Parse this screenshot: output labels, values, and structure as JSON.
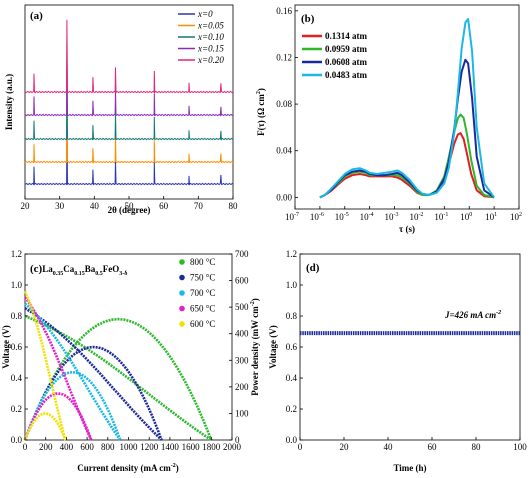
{
  "panels": {
    "a": {
      "label": "(a)"
    },
    "b": {
      "label": "(b)"
    },
    "c": {
      "label": "(c)",
      "compound": "La",
      "compound_parts": [
        "0.35",
        "Ca",
        "0.15",
        "Ba",
        "0.5",
        "FeO",
        "3-δ"
      ]
    },
    "d": {
      "label": "(d)"
    }
  },
  "chart_data": [
    {
      "panel": "a",
      "type": "line",
      "xlabel": "2θ (degree)",
      "ylabel": "Intensity (a.u.)",
      "xlim": [
        20,
        80
      ],
      "xticks": [
        "20",
        "30",
        "40",
        "50",
        "60",
        "70",
        "80"
      ],
      "legend_position": "top-right",
      "series": [
        {
          "name": "x=0",
          "color": "#2a35b8",
          "peaks": [
            [
              22.6,
              0.25
            ],
            [
              32.1,
              1.0
            ],
            [
              39.6,
              0.2
            ],
            [
              46.1,
              0.35
            ],
            [
              57.3,
              0.3
            ],
            [
              67.3,
              0.12
            ],
            [
              76.5,
              0.12
            ]
          ]
        },
        {
          "name": "x=0.05",
          "color": "#ff8c00",
          "peaks": [
            [
              22.6,
              0.25
            ],
            [
              32.1,
              1.0
            ],
            [
              39.6,
              0.2
            ],
            [
              46.1,
              0.35
            ],
            [
              57.3,
              0.3
            ],
            [
              67.3,
              0.12
            ],
            [
              76.5,
              0.12
            ]
          ]
        },
        {
          "name": "x=0.10",
          "color": "#0f7a70",
          "peaks": [
            [
              22.6,
              0.25
            ],
            [
              32.1,
              1.0
            ],
            [
              39.6,
              0.2
            ],
            [
              46.1,
              0.35
            ],
            [
              57.3,
              0.3
            ],
            [
              67.3,
              0.12
            ],
            [
              76.5,
              0.12
            ]
          ]
        },
        {
          "name": "x=0.15",
          "color": "#8b2ab8",
          "peaks": [
            [
              22.6,
              0.25
            ],
            [
              32.1,
              1.0
            ],
            [
              39.6,
              0.2
            ],
            [
              46.1,
              0.35
            ],
            [
              57.3,
              0.3
            ],
            [
              67.3,
              0.12
            ],
            [
              76.5,
              0.12
            ]
          ]
        },
        {
          "name": "x=0.20",
          "color": "#e0267a",
          "peaks": [
            [
              22.6,
              0.25
            ],
            [
              32.1,
              1.0
            ],
            [
              39.6,
              0.2
            ],
            [
              46.1,
              0.35
            ],
            [
              57.3,
              0.3
            ],
            [
              67.3,
              0.12
            ],
            [
              76.5,
              0.12
            ]
          ]
        }
      ]
    },
    {
      "panel": "b",
      "type": "line",
      "xlabel": "τ (s)",
      "ylabel": "F(τ) (Ω cm",
      "ylabel_sup": "2",
      "ylabel_end": ")",
      "xscale": "log",
      "xlim": [
        1e-07,
        100
      ],
      "ylim": [
        -0.01,
        0.165
      ],
      "xticks": [
        {
          "base": "10",
          "exp": "-7"
        },
        {
          "base": "10",
          "exp": "-6"
        },
        {
          "base": "10",
          "exp": "-5"
        },
        {
          "base": "10",
          "exp": "-4"
        },
        {
          "base": "10",
          "exp": "-3"
        },
        {
          "base": "10",
          "exp": "-2"
        },
        {
          "base": "10",
          "exp": "-1"
        },
        {
          "base": "10",
          "exp": "0"
        },
        {
          "base": "10",
          "exp": "1"
        },
        {
          "base": "10",
          "exp": "2"
        }
      ],
      "yticks": [
        "0.00",
        "0.04",
        "0.08",
        "0.12",
        "0.16"
      ],
      "legend_position": "top-left",
      "series": [
        {
          "name": "0.1314 atm",
          "color": "#e02020",
          "x": [
            1e-06,
            1.6e-06,
            3e-06,
            6e-06,
            1e-05,
            2e-05,
            4e-05,
            7e-05,
            0.0001,
            0.0002,
            0.0004,
            0.0008,
            0.0013,
            0.002,
            0.004,
            0.008,
            0.013,
            0.025,
            0.05,
            0.1,
            0.15,
            0.25,
            0.35,
            0.45,
            0.6,
            0.8,
            1.2,
            2,
            4,
            10
          ],
          "y": [
            0,
            0.002,
            0.006,
            0.012,
            0.016,
            0.019,
            0.02,
            0.019,
            0.018,
            0.018,
            0.018,
            0.018,
            0.017,
            0.015,
            0.01,
            0.004,
            0.002,
            0.002,
            0.005,
            0.015,
            0.028,
            0.046,
            0.054,
            0.055,
            0.05,
            0.038,
            0.02,
            0.006,
            0.001,
            0
          ]
        },
        {
          "name": "0.0959 atm",
          "color": "#2eb82e",
          "x": [
            1e-06,
            1.6e-06,
            3e-06,
            6e-06,
            1e-05,
            2e-05,
            4e-05,
            7e-05,
            0.0001,
            0.0002,
            0.0004,
            0.0008,
            0.0013,
            0.002,
            0.004,
            0.008,
            0.013,
            0.025,
            0.05,
            0.1,
            0.15,
            0.25,
            0.35,
            0.45,
            0.6,
            0.8,
            1.2,
            2,
            4,
            10
          ],
          "y": [
            0,
            0.002,
            0.007,
            0.013,
            0.018,
            0.021,
            0.022,
            0.021,
            0.019,
            0.019,
            0.019,
            0.019,
            0.019,
            0.017,
            0.012,
            0.005,
            0.002,
            0.002,
            0.006,
            0.018,
            0.034,
            0.056,
            0.068,
            0.071,
            0.068,
            0.055,
            0.032,
            0.01,
            0.002,
            0
          ]
        },
        {
          "name": "0.0608 atm",
          "color": "#1a2a9c",
          "x": [
            1e-06,
            1.6e-06,
            3e-06,
            6e-06,
            1e-05,
            2e-05,
            4e-05,
            7e-05,
            0.0001,
            0.0002,
            0.0004,
            0.0008,
            0.0013,
            0.002,
            0.004,
            0.008,
            0.013,
            0.025,
            0.05,
            0.1,
            0.15,
            0.25,
            0.35,
            0.5,
            0.7,
            0.9,
            1.3,
            2,
            4,
            10
          ],
          "y": [
            0,
            0.002,
            0.007,
            0.014,
            0.019,
            0.022,
            0.023,
            0.022,
            0.02,
            0.019,
            0.019,
            0.02,
            0.021,
            0.019,
            0.013,
            0.006,
            0.003,
            0.002,
            0.005,
            0.016,
            0.03,
            0.058,
            0.085,
            0.108,
            0.118,
            0.115,
            0.085,
            0.035,
            0.006,
            0
          ]
        },
        {
          "name": "0.0483 atm",
          "color": "#1ab8e6",
          "x": [
            1e-06,
            1.6e-06,
            3e-06,
            6e-06,
            1e-05,
            2e-05,
            4e-05,
            7e-05,
            0.0001,
            0.0002,
            0.0004,
            0.0008,
            0.0013,
            0.002,
            0.004,
            0.008,
            0.013,
            0.025,
            0.05,
            0.1,
            0.15,
            0.25,
            0.35,
            0.5,
            0.7,
            0.9,
            1.3,
            2,
            4,
            10
          ],
          "y": [
            0,
            0.002,
            0.008,
            0.015,
            0.02,
            0.024,
            0.025,
            0.023,
            0.021,
            0.02,
            0.021,
            0.022,
            0.023,
            0.021,
            0.015,
            0.007,
            0.003,
            0.002,
            0.004,
            0.012,
            0.025,
            0.055,
            0.09,
            0.128,
            0.15,
            0.153,
            0.125,
            0.06,
            0.012,
            0
          ]
        }
      ]
    },
    {
      "panel": "c",
      "type": "line",
      "xlabel": "Current density (mA cm",
      "xlabel_sup": "-2",
      "xlabel_end": ")",
      "ylabel": "Voltage (V)",
      "ylabel2": "Power density (mW cm",
      "ylabel2_sup": "-2",
      "ylabel2_end": ")",
      "xlim": [
        0,
        2000
      ],
      "ylim": [
        0,
        1.2
      ],
      "ylim2": [
        0,
        700
      ],
      "xticks": [
        "0",
        "200",
        "400",
        "600",
        "800",
        "1000",
        "1200",
        "1400",
        "1600",
        "1800",
        "2000"
      ],
      "yticks": [
        "0.0",
        "0.2",
        "0.4",
        "0.6",
        "0.8",
        "1.0",
        "1.2"
      ],
      "yticks2": [
        "0",
        "100",
        "200",
        "300",
        "400",
        "500",
        "600",
        "700"
      ],
      "legend_position": "top-right",
      "series": [
        {
          "name": "800 °C",
          "color": "#2eb82e",
          "ocv": 0.8,
          "imax": 1800,
          "pmax": 455
        },
        {
          "name": "750 °C",
          "color": "#1a2a9c",
          "ocv": 0.85,
          "imax": 1320,
          "pmax": 350
        },
        {
          "name": "700 °C",
          "color": "#1ab8e6",
          "ocv": 0.88,
          "imax": 920,
          "pmax": 255
        },
        {
          "name": "650 °C",
          "color": "#e020c8",
          "ocv": 0.92,
          "imax": 640,
          "pmax": 175
        },
        {
          "name": "600 °C",
          "color": "#f0e000",
          "ocv": 0.96,
          "imax": 390,
          "pmax": 100
        }
      ]
    },
    {
      "panel": "d",
      "type": "line",
      "xlabel": "Time (h)",
      "ylabel": "Voltage (V)",
      "xlim": [
        0,
        100
      ],
      "ylim": [
        0,
        1.2
      ],
      "xticks": [
        "0",
        "20",
        "40",
        "60",
        "80",
        "100"
      ],
      "yticks": [
        "0.0",
        "0.2",
        "0.4",
        "0.6",
        "0.8",
        "1.0",
        "1.2"
      ],
      "annotation": "J=426 mA cm",
      "annotation_sup": "-2",
      "series": [
        {
          "name": "",
          "color": "#1a2a9c",
          "x": [
            0,
            10,
            20,
            30,
            40,
            50,
            60,
            70,
            80,
            90,
            100
          ],
          "y": [
            0.69,
            0.69,
            0.69,
            0.69,
            0.69,
            0.69,
            0.69,
            0.69,
            0.69,
            0.69,
            0.69
          ]
        }
      ]
    }
  ]
}
